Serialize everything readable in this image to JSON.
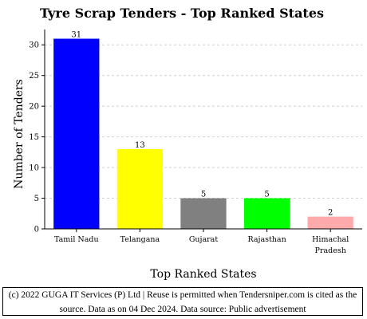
{
  "chart_data": {
    "type": "bar",
    "title": "Tyre Scrap Tenders - Top Ranked States",
    "xlabel": "Top Ranked States",
    "ylabel": "Number of Tenders",
    "categories": [
      "Tamil Nadu",
      "Telangana",
      "Gujarat",
      "Rajasthan",
      "Himachal Pradesh"
    ],
    "category_lines": [
      [
        "Tamil Nadu"
      ],
      [
        "Telangana"
      ],
      [
        "Gujarat"
      ],
      [
        "Rajasthan"
      ],
      [
        "Himachal",
        "Pradesh"
      ]
    ],
    "values": [
      31,
      13,
      5,
      5,
      2
    ],
    "colors": [
      "#0000ff",
      "#ffff00",
      "#808080",
      "#00ff00",
      "#ffaaaa"
    ],
    "ylim": [
      0,
      32.5
    ],
    "yticks": [
      0,
      5,
      10,
      15,
      20,
      25,
      30
    ],
    "grid": true,
    "legend": "none"
  },
  "footer": {
    "text": "(c) 2022 GUGA IT Services (P) Ltd | Reuse is permitted when Tendersniper.com is cited as the source. Data as on 04 Dec 2024. Data source: Public advertisement"
  }
}
